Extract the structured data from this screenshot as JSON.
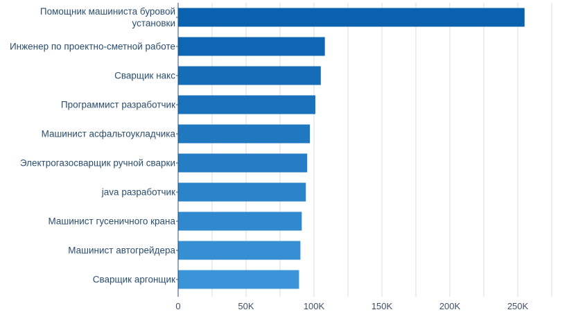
{
  "chart_data": {
    "type": "bar",
    "orientation": "horizontal",
    "categories": [
      [
        "Помощник машиниста буровой",
        "установки"
      ],
      [
        "Инженер по проектно-сметной работе"
      ],
      [
        "Сварщик накс"
      ],
      [
        "Программист разработчик"
      ],
      [
        "Машинист асфальтоукладчика"
      ],
      [
        "Электрогазосварщик ручной сварки"
      ],
      [
        "java разработчик"
      ],
      [
        "Машинист гусеничного крана"
      ],
      [
        "Машинист автогрейдера"
      ],
      [
        "Сварщик аргонщик"
      ]
    ],
    "values": [
      255000,
      108000,
      105000,
      101000,
      97000,
      95000,
      94000,
      91000,
      90000,
      89000
    ],
    "xlim": [
      0,
      275000
    ],
    "xticks": [
      0,
      50000,
      100000,
      150000,
      200000,
      250000
    ],
    "xtick_labels": [
      "0",
      "50K",
      "100K",
      "150K",
      "200K",
      "250K"
    ],
    "grid": true,
    "legend": "none",
    "colors": {
      "bar_top": "#0a62ae",
      "bar_bottom": "#3b93d8",
      "grid": "#d7dbe0",
      "axis": "#2b4d6e"
    }
  }
}
